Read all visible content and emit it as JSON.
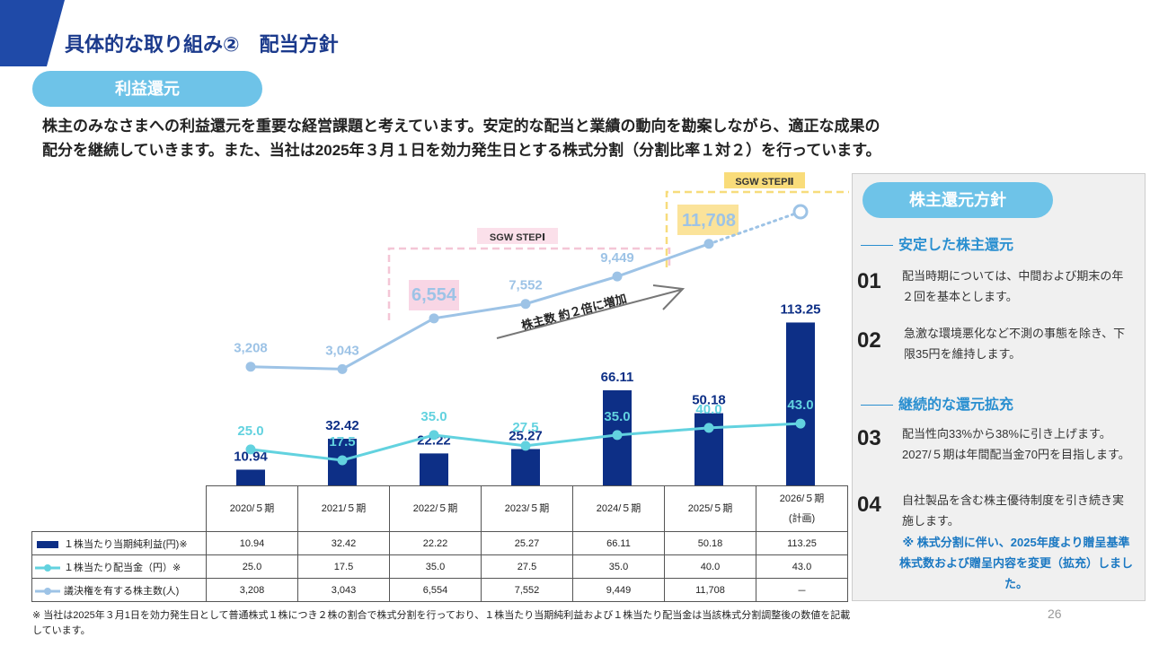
{
  "header": {
    "title": "具体的な取り組み②　配当方針",
    "tag": "利益還元",
    "lead": [
      "株主のみなさまへの利益還元を重要な経営課題と考えています。安定的な配当と業績の動向を勘案しながら、適正な成果の",
      "配分を継続していきます。また、当社は2025年３月１日を効力発生日とする株式分割（分割比率１対２）を行っています。"
    ]
  },
  "chart_data": {
    "type": "combo",
    "categories": [
      "2020/５期",
      "2021/５期",
      "2022/５期",
      "2023/５期",
      "2024/５期",
      "2025/５期",
      "2026/５期\n(計画)"
    ],
    "ylim": [
      0,
      194
    ],
    "y2lim": [
      -5000,
      14300
    ],
    "series": [
      {
        "name": "１株当たり当期純利益(円)※",
        "type": "bar",
        "color": "#0d2f86",
        "values": [
          10.94,
          32.42,
          22.22,
          25.27,
          66.11,
          50.18,
          113.25
        ]
      },
      {
        "name": "１株当たり配当金（円）※",
        "type": "line",
        "color": "#62d2df",
        "values": [
          25.0,
          17.5,
          35.0,
          27.5,
          35.0,
          40.0,
          43.0
        ],
        "value_labels": [
          "25.0",
          "17.5",
          "35.0",
          "27.5",
          "35.0",
          "40.0",
          "43.0"
        ]
      },
      {
        "name": "議決権を有する株主数(人)",
        "type": "line",
        "axis": "y2",
        "color": "#9dc3e6",
        "values": [
          3208,
          3043,
          6554,
          7552,
          9449,
          11708,
          null
        ],
        "value_labels": [
          "3,208",
          "3,043",
          "6,554",
          "7,552",
          "9,449",
          "11,708",
          "－"
        ]
      }
    ],
    "annotations": [
      "SGW STEPⅠ",
      "SGW STEPⅡ",
      "株主数 約２倍に増加"
    ]
  },
  "policy": {
    "title": "株主還元方針",
    "sections": [
      {
        "heading": "安定した株主還元",
        "items": [
          {
            "number": "01",
            "text": "配当時期については、中間および期末の年２回を基本とします。"
          },
          {
            "number": "02",
            "text": "急激な環境悪化など不測の事態を除き、下限35円を維持します。"
          }
        ]
      },
      {
        "heading": "継続的な還元拡充",
        "items": [
          {
            "number": "03",
            "text": "配当性向33%から38%に引き上げます。2027/５期は年間配当金70円を目指します。"
          },
          {
            "number": "04",
            "text": "自社製品を含む株主優待制度を引き続き実施します。"
          }
        ]
      }
    ],
    "note": "※ 株式分割に伴い、2025年度より贈呈基準株式数および贈呈内容を変更（拡充）しました。"
  },
  "footnote": "※ 当社は2025年３月1日を効力発生日として普通株式１株につき２株の割合で株式分割を行っており、１株当たり当期純利益および１株当たり配当金は当該株式分割調整後の数値を記載しています。",
  "page": "26"
}
